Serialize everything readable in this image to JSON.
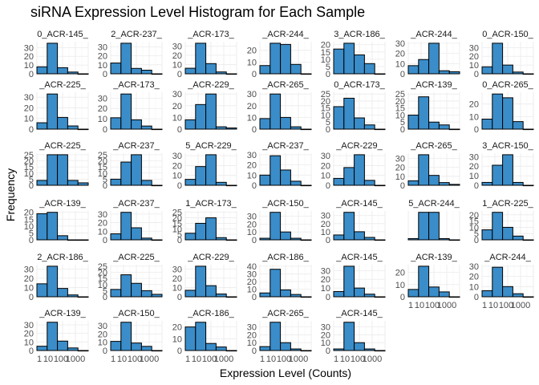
{
  "chart_data": {
    "type": "bar",
    "title": "siRNA Expression Level Histogram for Each Sample",
    "xlabel": "Expression Level (Counts)",
    "ylabel": "Frequency",
    "bar_color": "#3a8dc9",
    "x_tick_labels": [
      "1",
      "10",
      "100",
      "1000"
    ],
    "panels": [
      {
        "label": "0_ACR-145_",
        "values": [
          8,
          35,
          7,
          2,
          0
        ],
        "yticks": [
          0,
          10,
          20,
          30
        ]
      },
      {
        "label": "2_ACR-237_",
        "values": [
          12,
          34,
          6,
          4,
          0
        ],
        "yticks": [
          0,
          10,
          20,
          30
        ]
      },
      {
        "label": "_ACR-173_",
        "values": [
          6,
          33,
          11,
          2,
          0
        ],
        "yticks": [
          0,
          10,
          20,
          30
        ]
      },
      {
        "label": "_ACR-244_",
        "values": [
          7,
          26,
          25,
          8,
          0
        ],
        "yticks": [
          0,
          10,
          20
        ]
      },
      {
        "label": "3_ACR-186_",
        "values": [
          17,
          21,
          13,
          7,
          0
        ],
        "yticks": [
          0,
          5,
          10,
          15,
          20
        ]
      },
      {
        "label": "_ACR-244_",
        "values": [
          8,
          14,
          30,
          3,
          2
        ],
        "yticks": [
          0,
          10,
          20,
          30
        ]
      },
      {
        "label": "0_ACR-150_",
        "values": [
          8,
          35,
          10,
          2,
          0
        ],
        "yticks": [
          0,
          10,
          20,
          30
        ]
      },
      {
        "label": "_ACR-225_",
        "values": [
          6,
          33,
          11,
          3,
          0
        ],
        "yticks": [
          0,
          10,
          20,
          30
        ]
      },
      {
        "label": "_ACR-173_",
        "values": [
          11,
          34,
          9,
          3,
          0
        ],
        "yticks": [
          0,
          10,
          20,
          30
        ]
      },
      {
        "label": "_ACR-229_",
        "values": [
          8,
          21,
          30,
          2,
          1
        ],
        "yticks": [
          0,
          10,
          20,
          30
        ]
      },
      {
        "label": "_ACR-265_",
        "values": [
          9,
          30,
          10,
          2,
          0
        ],
        "yticks": [
          0,
          10,
          20,
          30
        ]
      },
      {
        "label": "0_ACR-173_",
        "values": [
          16,
          22,
          8,
          3,
          0
        ],
        "yticks": [
          0,
          5,
          10,
          15,
          20,
          25
        ]
      },
      {
        "label": "_ACR-139_",
        "values": [
          10,
          23,
          5,
          3,
          0
        ],
        "yticks": [
          0,
          5,
          10,
          15,
          20,
          25
        ]
      },
      {
        "label": "0_ACR-265_",
        "values": [
          8,
          28,
          25,
          6,
          0
        ],
        "yticks": [
          0,
          10,
          20
        ]
      },
      {
        "label": "_ACR-225_",
        "values": [
          4,
          25,
          25,
          4,
          2
        ],
        "yticks": [
          0,
          5,
          10,
          15,
          20,
          25
        ]
      },
      {
        "label": "_ACR-237_",
        "values": [
          5,
          19,
          25,
          4,
          0
        ],
        "yticks": [
          0,
          5,
          10,
          15,
          20,
          25
        ]
      },
      {
        "label": "5_ACR-229_",
        "values": [
          6,
          19,
          31,
          3,
          0
        ],
        "yticks": [
          0,
          10,
          20,
          30
        ]
      },
      {
        "label": "_ACR-237_",
        "values": [
          10,
          29,
          15,
          4,
          0
        ],
        "yticks": [
          0,
          10,
          20,
          30
        ]
      },
      {
        "label": "_ACR-229_",
        "values": [
          7,
          18,
          31,
          5,
          0
        ],
        "yticks": [
          0,
          10,
          20,
          30
        ]
      },
      {
        "label": "_ACR-265_",
        "values": [
          5,
          34,
          11,
          3,
          1
        ],
        "yticks": [
          0,
          10,
          20,
          30
        ]
      },
      {
        "label": "3_ACR-150_",
        "values": [
          3,
          21,
          32,
          3,
          0
        ],
        "yticks": [
          0,
          10,
          20,
          30
        ]
      },
      {
        "label": "_ACR-139_",
        "values": [
          19,
          20,
          3,
          0,
          0
        ],
        "yticks": [
          0,
          5,
          10,
          15,
          20
        ]
      },
      {
        "label": "_ACR-237_",
        "values": [
          7,
          32,
          14,
          2,
          0
        ],
        "yticks": [
          0,
          10,
          20,
          30
        ]
      },
      {
        "label": "1_ACR-173_",
        "values": [
          6,
          15,
          20,
          2,
          0
        ],
        "yticks": [
          0,
          5,
          10,
          15,
          20,
          25
        ]
      },
      {
        "label": "_ACR-150_",
        "values": [
          2,
          35,
          10,
          2,
          0
        ],
        "yticks": [
          0,
          10,
          20,
          30
        ]
      },
      {
        "label": "_ACR-145_",
        "values": [
          6,
          34,
          10,
          3,
          0
        ],
        "yticks": [
          0,
          10,
          20,
          30
        ]
      },
      {
        "label": "5_ACR-244_",
        "values": [
          1,
          22,
          22,
          1,
          0
        ],
        "yticks": []
      },
      {
        "label": "1_ACR-225_",
        "values": [
          8,
          22,
          10,
          3,
          0
        ],
        "yticks": [
          0,
          5,
          10,
          15,
          20
        ]
      },
      {
        "label": "2_ACR-186_",
        "values": [
          14,
          33,
          9,
          2,
          0
        ],
        "yticks": [
          0,
          10,
          20,
          30
        ]
      },
      {
        "label": "_ACR-225_",
        "values": [
          6,
          18,
          11,
          5,
          2
        ],
        "yticks": [
          0,
          5,
          10,
          15,
          20,
          25
        ]
      },
      {
        "label": "_ACR-229_",
        "values": [
          7,
          33,
          12,
          3,
          0
        ],
        "yticks": [
          0,
          10,
          20,
          30
        ]
      },
      {
        "label": "_ACR-186_",
        "values": [
          5,
          36,
          9,
          3,
          0
        ],
        "yticks": [
          0,
          10,
          20,
          30,
          40
        ]
      },
      {
        "label": "_ACR-145_",
        "values": [
          6,
          35,
          10,
          3,
          0
        ],
        "yticks": [
          0,
          10,
          20,
          30
        ]
      },
      {
        "label": "_ACR-139_",
        "values": [
          6,
          25,
          8,
          4,
          0
        ],
        "yticks": [
          0,
          10,
          20
        ]
      },
      {
        "label": "_ACR-244_",
        "values": [
          6,
          29,
          10,
          3,
          0
        ],
        "yticks": [
          0,
          10,
          20,
          30
        ]
      },
      {
        "label": "_ACR-139_",
        "values": [
          5,
          33,
          11,
          3,
          0
        ],
        "yticks": [
          0,
          10,
          20,
          30
        ]
      },
      {
        "label": "_ACR-150_",
        "values": [
          11,
          34,
          9,
          5,
          0
        ],
        "yticks": [
          0,
          10,
          20,
          30
        ]
      },
      {
        "label": "_ACR-186_",
        "values": [
          20,
          24,
          6,
          3,
          0
        ],
        "yticks": [
          0,
          10,
          20
        ]
      },
      {
        "label": "_ACR-265_",
        "values": [
          5,
          36,
          10,
          2,
          0
        ],
        "yticks": [
          0,
          10,
          20,
          30
        ]
      },
      {
        "label": "_ACR-145_",
        "values": [
          2,
          36,
          10,
          2,
          0
        ],
        "yticks": [
          0,
          10,
          20,
          30
        ]
      }
    ]
  }
}
